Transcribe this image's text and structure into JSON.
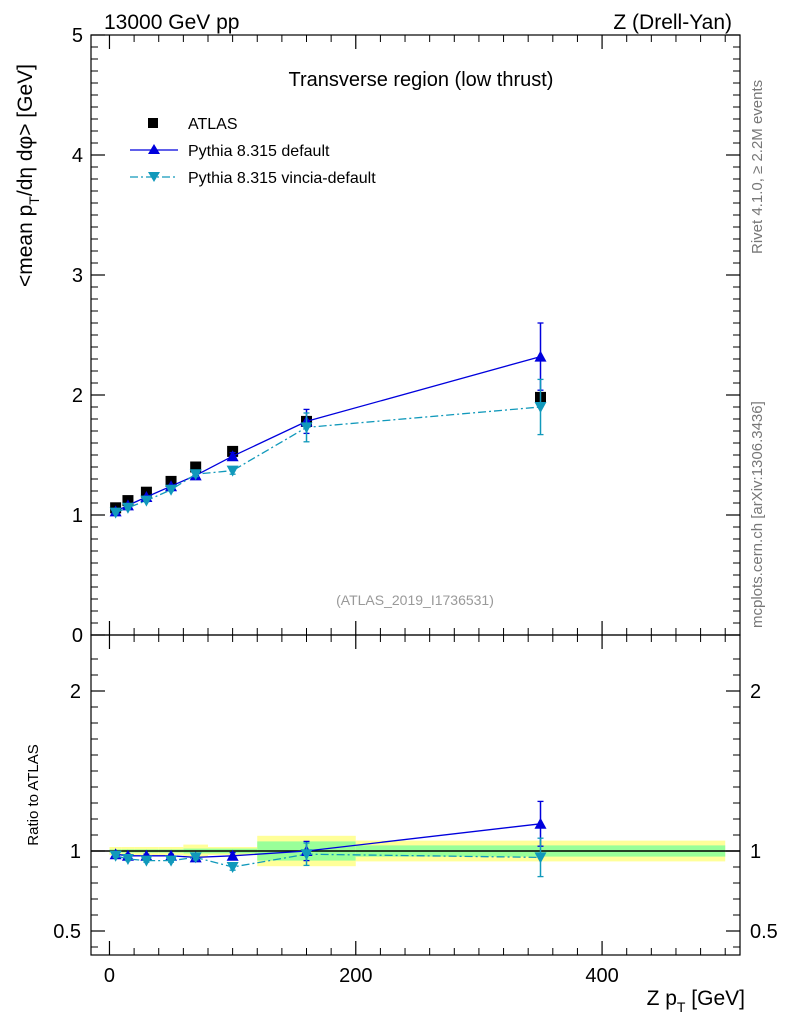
{
  "header": {
    "energy_label": "13000 GeV pp",
    "process_label": "Z (Drell-Yan)",
    "rivet_label": "Rivet 4.1.0, ≥ 2.2M events",
    "mcplots_label": "mcplots.cern.ch [arXiv:1306.3436]"
  },
  "chart_data": [
    {
      "type": "scatter",
      "panel": "main",
      "title": "Transverse region (low thrust)",
      "analysis_label": "(ATLAS_2019_I1736531)",
      "xlabel": "Z p_T [GeV]",
      "ylabel": "<mean p_T/dη dφ> [GeV]",
      "xlim": [
        -15,
        512
      ],
      "ylim": [
        0,
        5
      ],
      "y_ticks": [
        "0",
        "1",
        "2",
        "3",
        "4",
        "5"
      ],
      "legend_position": "top-left",
      "series": [
        {
          "name": "ATLAS",
          "style": "square-marker",
          "color": "#000000",
          "x": [
            5,
            15,
            30,
            50,
            70,
            100,
            160,
            350
          ],
          "y": [
            1.06,
            1.12,
            1.19,
            1.28,
            1.4,
            1.53,
            1.78,
            1.98
          ]
        },
        {
          "name": "Pythia 8.315 default",
          "style": "solid-line-triangle-up",
          "color": "#0000dd",
          "x": [
            5,
            15,
            30,
            50,
            70,
            100,
            160,
            350
          ],
          "y": [
            1.03,
            1.08,
            1.15,
            1.24,
            1.33,
            1.49,
            1.78,
            2.32
          ],
          "err": [
            0.01,
            0.01,
            0.01,
            0.01,
            0.02,
            0.03,
            0.1,
            0.28
          ]
        },
        {
          "name": "Pythia 8.315 vincia-default",
          "style": "dashdot-line-triangle-down",
          "color": "#1199bb",
          "x": [
            5,
            15,
            30,
            50,
            70,
            100,
            160,
            350
          ],
          "y": [
            1.02,
            1.06,
            1.12,
            1.21,
            1.34,
            1.37,
            1.73,
            1.9
          ],
          "err": [
            0.01,
            0.01,
            0.01,
            0.01,
            0.02,
            0.03,
            0.12,
            0.23
          ]
        }
      ]
    },
    {
      "type": "scatter",
      "panel": "ratio",
      "ylabel": "Ratio to ATLAS",
      "xlabel": "Z p_T [GeV]",
      "xlim": [
        -15,
        512
      ],
      "ylim": [
        0.35,
        2.35
      ],
      "y_ticks": [
        "0.5",
        "1",
        "2"
      ],
      "x_ticks": [
        "0",
        "200",
        "400"
      ],
      "bands": [
        {
          "x_lo": 0,
          "x_hi": 10,
          "stat": 0.01,
          "total": 0.025
        },
        {
          "x_lo": 10,
          "x_hi": 20,
          "stat": 0.01,
          "total": 0.025
        },
        {
          "x_lo": 20,
          "x_hi": 40,
          "stat": 0.01,
          "total": 0.025
        },
        {
          "x_lo": 40,
          "x_hi": 60,
          "stat": 0.01,
          "total": 0.025
        },
        {
          "x_lo": 60,
          "x_hi": 80,
          "stat": 0.015,
          "total": 0.04
        },
        {
          "x_lo": 80,
          "x_hi": 120,
          "stat": 0.015,
          "total": 0.025
        },
        {
          "x_lo": 120,
          "x_hi": 200,
          "stat": 0.06,
          "total": 0.095
        },
        {
          "x_lo": 200,
          "x_hi": 500,
          "stat": 0.035,
          "total": 0.065
        }
      ],
      "series": [
        {
          "name": "Pythia 8.315 default",
          "x": [
            5,
            15,
            30,
            50,
            70,
            100,
            160,
            350
          ],
          "y": [
            0.98,
            0.97,
            0.97,
            0.97,
            0.96,
            0.97,
            1.0,
            1.17
          ],
          "err": [
            0.01,
            0.01,
            0.01,
            0.01,
            0.015,
            0.02,
            0.06,
            0.14
          ]
        },
        {
          "name": "Pythia 8.315 vincia-default",
          "x": [
            5,
            15,
            30,
            50,
            70,
            100,
            160,
            350
          ],
          "y": [
            0.97,
            0.95,
            0.94,
            0.94,
            0.96,
            0.9,
            0.98,
            0.96
          ],
          "err": [
            0.01,
            0.01,
            0.01,
            0.01,
            0.015,
            0.02,
            0.07,
            0.12
          ]
        }
      ]
    }
  ]
}
